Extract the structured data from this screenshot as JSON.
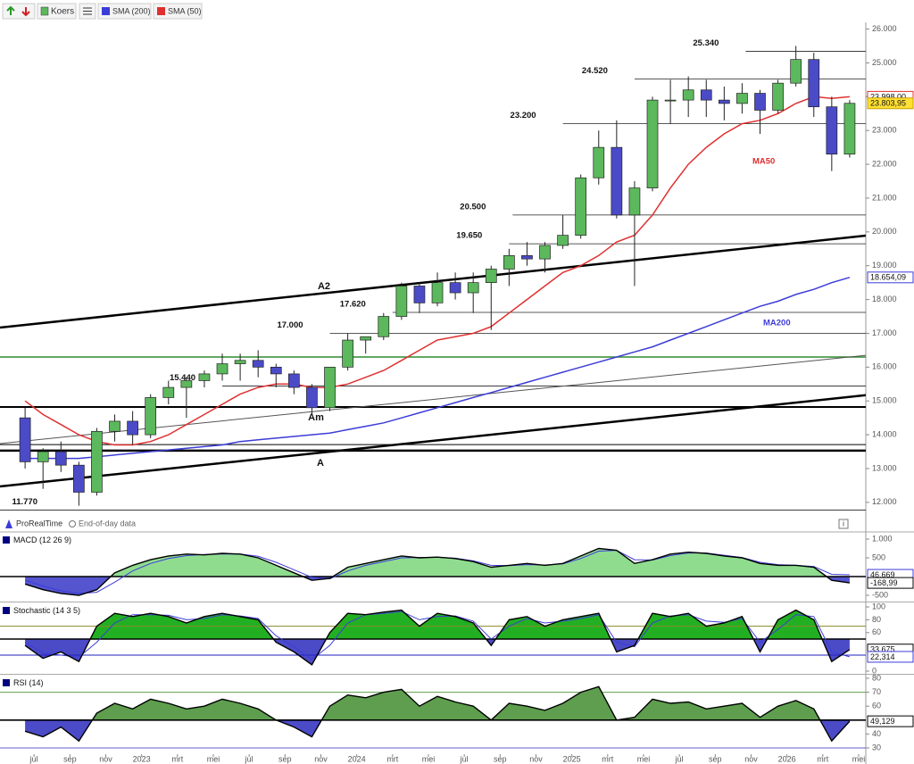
{
  "chart_data": [
    {
      "type": "candlestick",
      "series": [
        {
          "name": "Koers",
          "up_color": "#5cb85c",
          "down_color": "#4b4bc8",
          "open": [
            14500,
            13200,
            13500,
            13100,
            12300,
            14100,
            14400,
            14000,
            15100,
            15400,
            15600,
            15800,
            16100,
            16200,
            16000,
            15800,
            15400,
            14800,
            16000,
            16800,
            16900,
            17500,
            18400,
            17900,
            18500,
            18200,
            18500,
            18900,
            19300,
            19200,
            19600,
            19900,
            21600,
            22500,
            20500,
            21300,
            23900,
            23900,
            24200,
            23900,
            23800,
            24100,
            23600,
            24400,
            25100,
            23700,
            22300
          ],
          "high": [
            14800,
            13600,
            13800,
            13200,
            14200,
            14600,
            14700,
            15200,
            15600,
            15700,
            15900,
            16400,
            16400,
            16500,
            16100,
            15900,
            15500,
            16000,
            17000,
            16900,
            17600,
            18500,
            18500,
            18800,
            18800,
            18800,
            19000,
            19500,
            19700,
            19700,
            20500,
            21700,
            23000,
            23300,
            21500,
            24000,
            24500,
            24600,
            24500,
            24300,
            24400,
            24200,
            24500,
            25500,
            25300,
            24000,
            23900
          ],
          "low": [
            13000,
            12400,
            12900,
            11900,
            12200,
            13800,
            13700,
            13900,
            14900,
            14500,
            15400,
            15600,
            15600,
            15700,
            15400,
            15200,
            14600,
            14700,
            15900,
            16400,
            16800,
            17400,
            17600,
            17800,
            18000,
            17600,
            17100,
            18400,
            19000,
            18800,
            19500,
            19800,
            21400,
            20400,
            18400,
            21200,
            23200,
            23400,
            23400,
            23300,
            23500,
            22900,
            23500,
            24300,
            23400,
            21800,
            22200
          ],
          "close": [
            13200,
            13500,
            13100,
            12300,
            14100,
            14400,
            14000,
            15100,
            15400,
            15600,
            15800,
            16100,
            16200,
            16000,
            15800,
            15400,
            14800,
            16000,
            16800,
            16900,
            17500,
            18400,
            17900,
            18500,
            18200,
            18500,
            18900,
            19300,
            19200,
            19600,
            19900,
            21600,
            22500,
            20500,
            21300,
            23900,
            23900,
            24200,
            23900,
            23800,
            24100,
            23600,
            24400,
            25100,
            23700,
            22300,
            23803.95
          ]
        },
        {
          "name": "SMA (200)",
          "color": "#3c3cd8",
          "values": [
            13300,
            13300,
            13300,
            13300,
            13350,
            13400,
            13450,
            13500,
            13550,
            13600,
            13650,
            13700,
            13800,
            13850,
            13900,
            13950,
            14000,
            14050,
            14150,
            14250,
            14350,
            14500,
            14650,
            14800,
            14950,
            15100,
            15250,
            15400,
            15550,
            15700,
            15850,
            16000,
            16150,
            16300,
            16450,
            16600,
            16800,
            17000,
            17200,
            17400,
            17600,
            17800,
            17950,
            18150,
            18300,
            18500,
            18654.09
          ]
        },
        {
          "name": "SMA (50)",
          "color": "#e03030",
          "values": [
            15000,
            14600,
            14300,
            14000,
            13800,
            13700,
            13700,
            13800,
            14000,
            14300,
            14600,
            14900,
            15200,
            15400,
            15500,
            15500,
            15400,
            15400,
            15500,
            15700,
            15900,
            16200,
            16500,
            16800,
            16900,
            17000,
            17200,
            17600,
            18000,
            18400,
            18800,
            19000,
            19300,
            19700,
            19900,
            20500,
            21300,
            22000,
            22500,
            22900,
            23200,
            23300,
            23500,
            23800,
            24000,
            23950,
            23998
          ]
        }
      ],
      "x": [
        5.5,
        6.5,
        7.5,
        8.5,
        9.5,
        10.5,
        11.5,
        12.5,
        13.5,
        14.5,
        15.5,
        16.5,
        17.5,
        18.5,
        19.5,
        20.5,
        21.5,
        22.5,
        23.5,
        24.5,
        25.5,
        26.5,
        27.5,
        28.5,
        29.5,
        30.5,
        31.5,
        32.5,
        33.5,
        34.5,
        35.5,
        36.5,
        37.5,
        38.5,
        39.5,
        40.5,
        41.5,
        42.5,
        43.5,
        44.5,
        45.5,
        46.5,
        47.5,
        48.5,
        49.5,
        50.5,
        51.5
      ],
      "xlim": [
        4.1,
        52.4
      ],
      "ylim": [
        11600,
        26200
      ],
      "yticks": [
        {
          "value": 12000,
          "label": "12.000"
        },
        {
          "value": 13000,
          "label": "13.000"
        },
        {
          "value": 14000,
          "label": "14.000"
        },
        {
          "value": 15000,
          "label": "15.000"
        },
        {
          "value": 16000,
          "label": "16.000"
        },
        {
          "value": 17000,
          "label": "17.000"
        },
        {
          "value": 18000,
          "label": "18.000"
        },
        {
          "value": 19000,
          "label": "19.000"
        },
        {
          "value": 20000,
          "label": "20.000"
        },
        {
          "value": 21000,
          "label": "21.000"
        },
        {
          "value": 22000,
          "label": "22.000"
        },
        {
          "value": 23000,
          "label": "23.000"
        },
        {
          "value": 24000,
          "label": "24.000"
        },
        {
          "value": 25000,
          "label": "25.000"
        },
        {
          "value": 26000,
          "label": "26.000"
        }
      ],
      "levels": [
        {
          "value": 25340,
          "label": "25.340",
          "from": 45.7
        },
        {
          "value": 24520,
          "label": "24.520",
          "from": 39.5
        },
        {
          "value": 23200,
          "label": "23.200",
          "from": 35.5
        },
        {
          "value": 20500,
          "label": "20.500",
          "from": 32.7
        },
        {
          "value": 19650,
          "label": "19.650",
          "from": 32.5
        },
        {
          "value": 17620,
          "label": "17.620",
          "from": 26
        },
        {
          "value": 17000,
          "label": "17.000",
          "from": 22.5
        },
        {
          "value": 15440,
          "label": "15.440",
          "from": 16.5
        },
        {
          "value": 11770,
          "label": "11.770",
          "from": 4.1
        }
      ],
      "lines": [
        {
          "value": 16300,
          "color": "#2e8b2e",
          "width": 1.5
        },
        {
          "value": 14820,
          "color": "#000000",
          "width": 2
        },
        {
          "value": 13710,
          "color": "#000000",
          "width": 1
        },
        {
          "value": 13530,
          "color": "#000000",
          "width": 2.5
        }
      ],
      "trendlines": [
        {
          "label": "A2",
          "from": [
            4.1,
            17170
          ],
          "to": [
            52.4,
            19890
          ],
          "color": "#000000",
          "width": 2.5
        },
        {
          "label": "Am",
          "from": [
            4.1,
            13740
          ],
          "to": [
            52.4,
            16350
          ],
          "color": "#555555",
          "width": 1
        },
        {
          "label": "A",
          "from": [
            4.1,
            12470
          ],
          "to": [
            52.4,
            15170
          ],
          "color": "#000000",
          "width": 2.5
        }
      ],
      "annotations": [
        {
          "text": "MA50",
          "color": "#e03030"
        },
        {
          "text": "MA200",
          "color": "#3c3cd8"
        }
      ],
      "flags": [
        {
          "value": 23998,
          "label": "23.998,00",
          "color": "#e03030",
          "fill": "#ffffff"
        },
        {
          "value": 23803.95,
          "label": "23.803,95",
          "color": "#c8a000",
          "fill": "#ffe033"
        },
        {
          "value": 18654.09,
          "label": "18.654,09",
          "color": "#3c3cd8",
          "fill": "#ffffff"
        }
      ],
      "footer": [
        "ProRealTime",
        "End-of-day data"
      ]
    },
    {
      "type": "macd",
      "title": "MACD (12 26 9)",
      "values": [
        -200,
        -350,
        -450,
        -500,
        -350,
        100,
        300,
        450,
        550,
        600,
        580,
        620,
        600,
        500,
        300,
        100,
        -100,
        -50,
        250,
        350,
        450,
        550,
        500,
        520,
        480,
        400,
        250,
        300,
        350,
        300,
        350,
        550,
        750,
        700,
        350,
        450,
        600,
        650,
        620,
        550,
        500,
        350,
        300,
        300,
        250,
        -100,
        -168.99
      ],
      "signal": [
        -100,
        -250,
        -380,
        -450,
        -420,
        -150,
        150,
        350,
        480,
        560,
        590,
        600,
        600,
        540,
        380,
        180,
        -20,
        -60,
        150,
        300,
        400,
        500,
        510,
        515,
        490,
        420,
        300,
        290,
        320,
        310,
        340,
        480,
        680,
        700,
        450,
        440,
        560,
        630,
        630,
        570,
        510,
        380,
        320,
        300,
        270,
        60,
        46.669
      ],
      "line_color": "#000000",
      "signal_color": "#3c3cd8",
      "up_color": "#8fdc8f",
      "down_color": "#5555d0",
      "base": 0,
      "ylim": [
        -619,
        1167
      ],
      "yticks": [
        {
          "value": 1000,
          "label": "1.000"
        },
        500,
        -500
      ],
      "levels": [
        {
          "value": 0,
          "color": "#000000"
        }
      ],
      "flags": [
        {
          "value": 46.669,
          "label": "46,669",
          "color": "#3c3cd8",
          "fill": "#ffffff"
        },
        {
          "value": -168.99,
          "label": "-168,99",
          "color": "#000000",
          "fill": "#ffffff"
        }
      ]
    },
    {
      "type": "oscillator",
      "title": "Stochastic (14 3 5)",
      "values": [
        40,
        20,
        30,
        15,
        70,
        90,
        85,
        90,
        85,
        75,
        85,
        90,
        85,
        80,
        45,
        30,
        10,
        60,
        90,
        88,
        92,
        95,
        70,
        90,
        85,
        75,
        40,
        80,
        85,
        70,
        80,
        85,
        90,
        30,
        40,
        90,
        85,
        90,
        70,
        75,
        85,
        30,
        80,
        95,
        80,
        15,
        33.675
      ],
      "signal": [
        45,
        28,
        25,
        22,
        45,
        75,
        88,
        88,
        87,
        80,
        82,
        88,
        86,
        82,
        55,
        38,
        18,
        40,
        75,
        88,
        90,
        93,
        80,
        85,
        86,
        78,
        50,
        70,
        82,
        75,
        78,
        82,
        88,
        45,
        38,
        75,
        86,
        88,
        78,
        76,
        82,
        45,
        65,
        88,
        85,
        30,
        22.314
      ],
      "line_color": "#000000",
      "signal_color": "#3c3cd8",
      "up_color": "#22b022",
      "down_color": "#4b4bc8",
      "base": 50,
      "ylim": [
        -2.8,
        105.6
      ],
      "yticks": [
        100,
        80,
        60,
        0
      ],
      "levels": [
        {
          "value": 70,
          "color": "#8a8a2a"
        },
        {
          "value": 50,
          "color": "#000000"
        },
        {
          "value": 25,
          "color": "#2020c0"
        }
      ],
      "flags": [
        {
          "value": 33.675,
          "label": "33,675",
          "color": "#000000",
          "fill": "#ffffff"
        },
        {
          "value": 22.314,
          "label": "22,314",
          "color": "#3c3cd8",
          "fill": "#ffffff"
        }
      ]
    },
    {
      "type": "oscillator",
      "title": "RSI (14)",
      "values": [
        42,
        38,
        45,
        35,
        55,
        62,
        58,
        65,
        62,
        58,
        60,
        65,
        62,
        58,
        50,
        45,
        38,
        60,
        68,
        66,
        70,
        72,
        60,
        67,
        63,
        60,
        50,
        62,
        60,
        57,
        62,
        70,
        74,
        50,
        52,
        65,
        62,
        63,
        58,
        60,
        62,
        52,
        60,
        64,
        58,
        35,
        49.129
      ],
      "line_color": "#000000",
      "up_color": "#5e9e4e",
      "down_color": "#4b4bc8",
      "base": 50,
      "ylim": [
        25.5,
        81.9
      ],
      "yticks": [
        80,
        70,
        60,
        40,
        30
      ],
      "levels": [
        {
          "value": 70,
          "color": "#5e9e4e"
        },
        {
          "value": 50,
          "color": "#000000"
        },
        {
          "value": 30,
          "color": "#6060d0"
        }
      ],
      "flags": [
        {
          "value": 49.129,
          "label": "49,129",
          "color": "#000000",
          "fill": "#ffffff"
        }
      ],
      "xticks": [
        {
          "value": 6,
          "label": "jul"
        },
        {
          "value": 8,
          "label": "sep"
        },
        {
          "value": 10,
          "label": "nov"
        },
        {
          "value": 12,
          "label": "2023"
        },
        {
          "value": 14,
          "label": "mrt"
        },
        {
          "value": 16,
          "label": "mei"
        },
        {
          "value": 18,
          "label": "jul"
        },
        {
          "value": 20,
          "label": "sep"
        },
        {
          "value": 22,
          "label": "nov"
        },
        {
          "value": 24,
          "label": "2024"
        },
        {
          "value": 26,
          "label": "mrt"
        },
        {
          "value": 28,
          "label": "mei"
        },
        {
          "value": 30,
          "label": "jul"
        },
        {
          "value": 32,
          "label": "sep"
        },
        {
          "value": 34,
          "label": "nov"
        },
        {
          "value": 36,
          "label": "2025"
        },
        {
          "value": 38,
          "label": "mrt"
        },
        {
          "value": 40,
          "label": "mei"
        },
        {
          "value": 42,
          "label": "jul"
        },
        {
          "value": 44,
          "label": "sep"
        },
        {
          "value": 46,
          "label": "nov"
        },
        {
          "value": 48,
          "label": "2026"
        },
        {
          "value": 50,
          "label": "mrt"
        },
        {
          "value": 52,
          "label": "mei"
        }
      ]
    }
  ]
}
